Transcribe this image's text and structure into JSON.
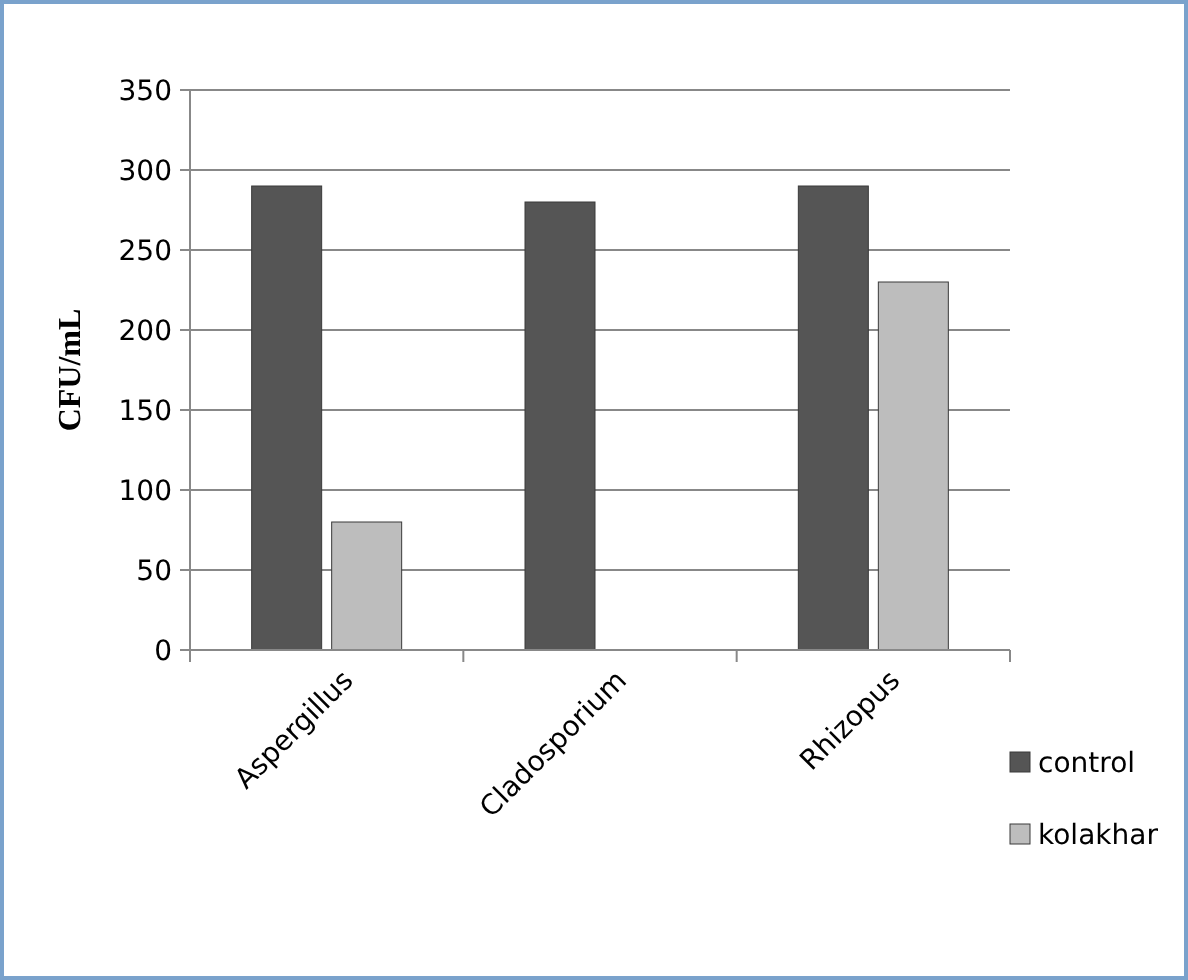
{
  "chart_data": {
    "type": "bar",
    "ylabel": "CFU/mL",
    "categories": [
      "Aspergillus",
      "Cladosporium",
      "Rhizopus"
    ],
    "series": [
      {
        "name": "control",
        "color": "#555555",
        "values": [
          290,
          280,
          290
        ]
      },
      {
        "name": "kolakhar",
        "color": "#bdbdbd",
        "values": [
          80,
          0,
          230
        ]
      }
    ],
    "ylim": [
      0,
      350
    ],
    "yticks": [
      0,
      50,
      100,
      150,
      200,
      250,
      300,
      350
    ],
    "grid": "y",
    "legend": "right"
  }
}
